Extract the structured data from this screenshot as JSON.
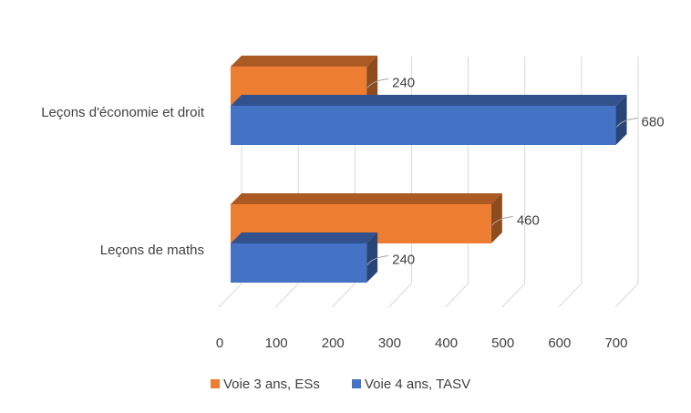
{
  "chart_data": {
    "type": "bar",
    "orientation": "horizontal",
    "three_d": true,
    "categories": [
      "Leçons d'économie et droit",
      "Leçons de maths"
    ],
    "series": [
      {
        "name": "Voie 3 ans, ESs",
        "color": "#ED7D31",
        "values": [
          240,
          460
        ]
      },
      {
        "name": "Voie 4 ans, TASV",
        "color": "#4472C4",
        "values": [
          680,
          240
        ]
      }
    ],
    "x_ticks": [
      "0",
      "100",
      "200",
      "300",
      "400",
      "500",
      "600",
      "700"
    ],
    "xlim": [
      0,
      700
    ],
    "grid": true,
    "data_labels": true,
    "legend_position": "bottom",
    "title": "",
    "xlabel": "",
    "ylabel": ""
  }
}
